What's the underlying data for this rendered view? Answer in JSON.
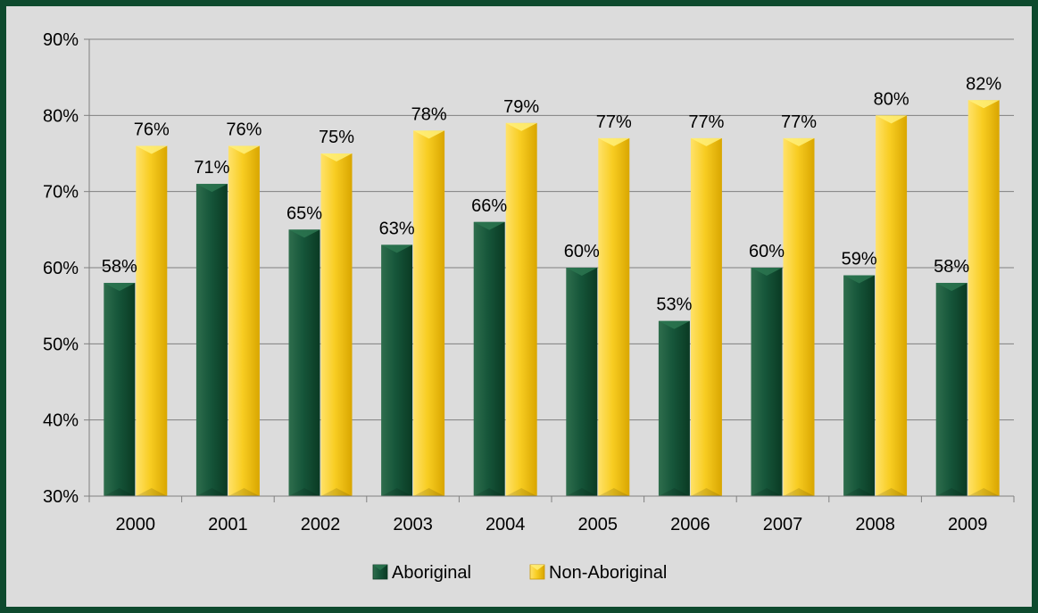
{
  "chart_data": {
    "type": "bar",
    "title": "",
    "xlabel": "",
    "ylabel": "",
    "categories": [
      "2000",
      "2001",
      "2002",
      "2003",
      "2004",
      "2005",
      "2006",
      "2007",
      "2008",
      "2009"
    ],
    "series": [
      {
        "name": "Aboriginal",
        "values": [
          58,
          71,
          65,
          63,
          66,
          60,
          53,
          60,
          59,
          58
        ],
        "labels": [
          "58%",
          "71%",
          "65%",
          "63%",
          "66%",
          "60%",
          "53%",
          "60%",
          "59%",
          "58%"
        ]
      },
      {
        "name": "Non-Aboriginal",
        "values": [
          76,
          76,
          75,
          78,
          79,
          77,
          77,
          77,
          80,
          82
        ],
        "labels": [
          "76%",
          "76%",
          "75%",
          "78%",
          "79%",
          "77%",
          "77%",
          "77%",
          "80%",
          "82%"
        ]
      }
    ],
    "ylim": [
      30,
      90
    ],
    "y_ticks": [
      30,
      40,
      50,
      60,
      70,
      80,
      90
    ],
    "y_tick_labels": [
      "30%",
      "40%",
      "50%",
      "60%",
      "70%",
      "80%",
      "90%"
    ],
    "grid": true,
    "legend_position": "bottom",
    "colors": {
      "Aboriginal": "#0e4a2e",
      "Non-Aboriginal": "#f5c518",
      "frame": "#0e4a2e",
      "plot_background": "#dcdcdc",
      "gridline": "#808080"
    }
  }
}
